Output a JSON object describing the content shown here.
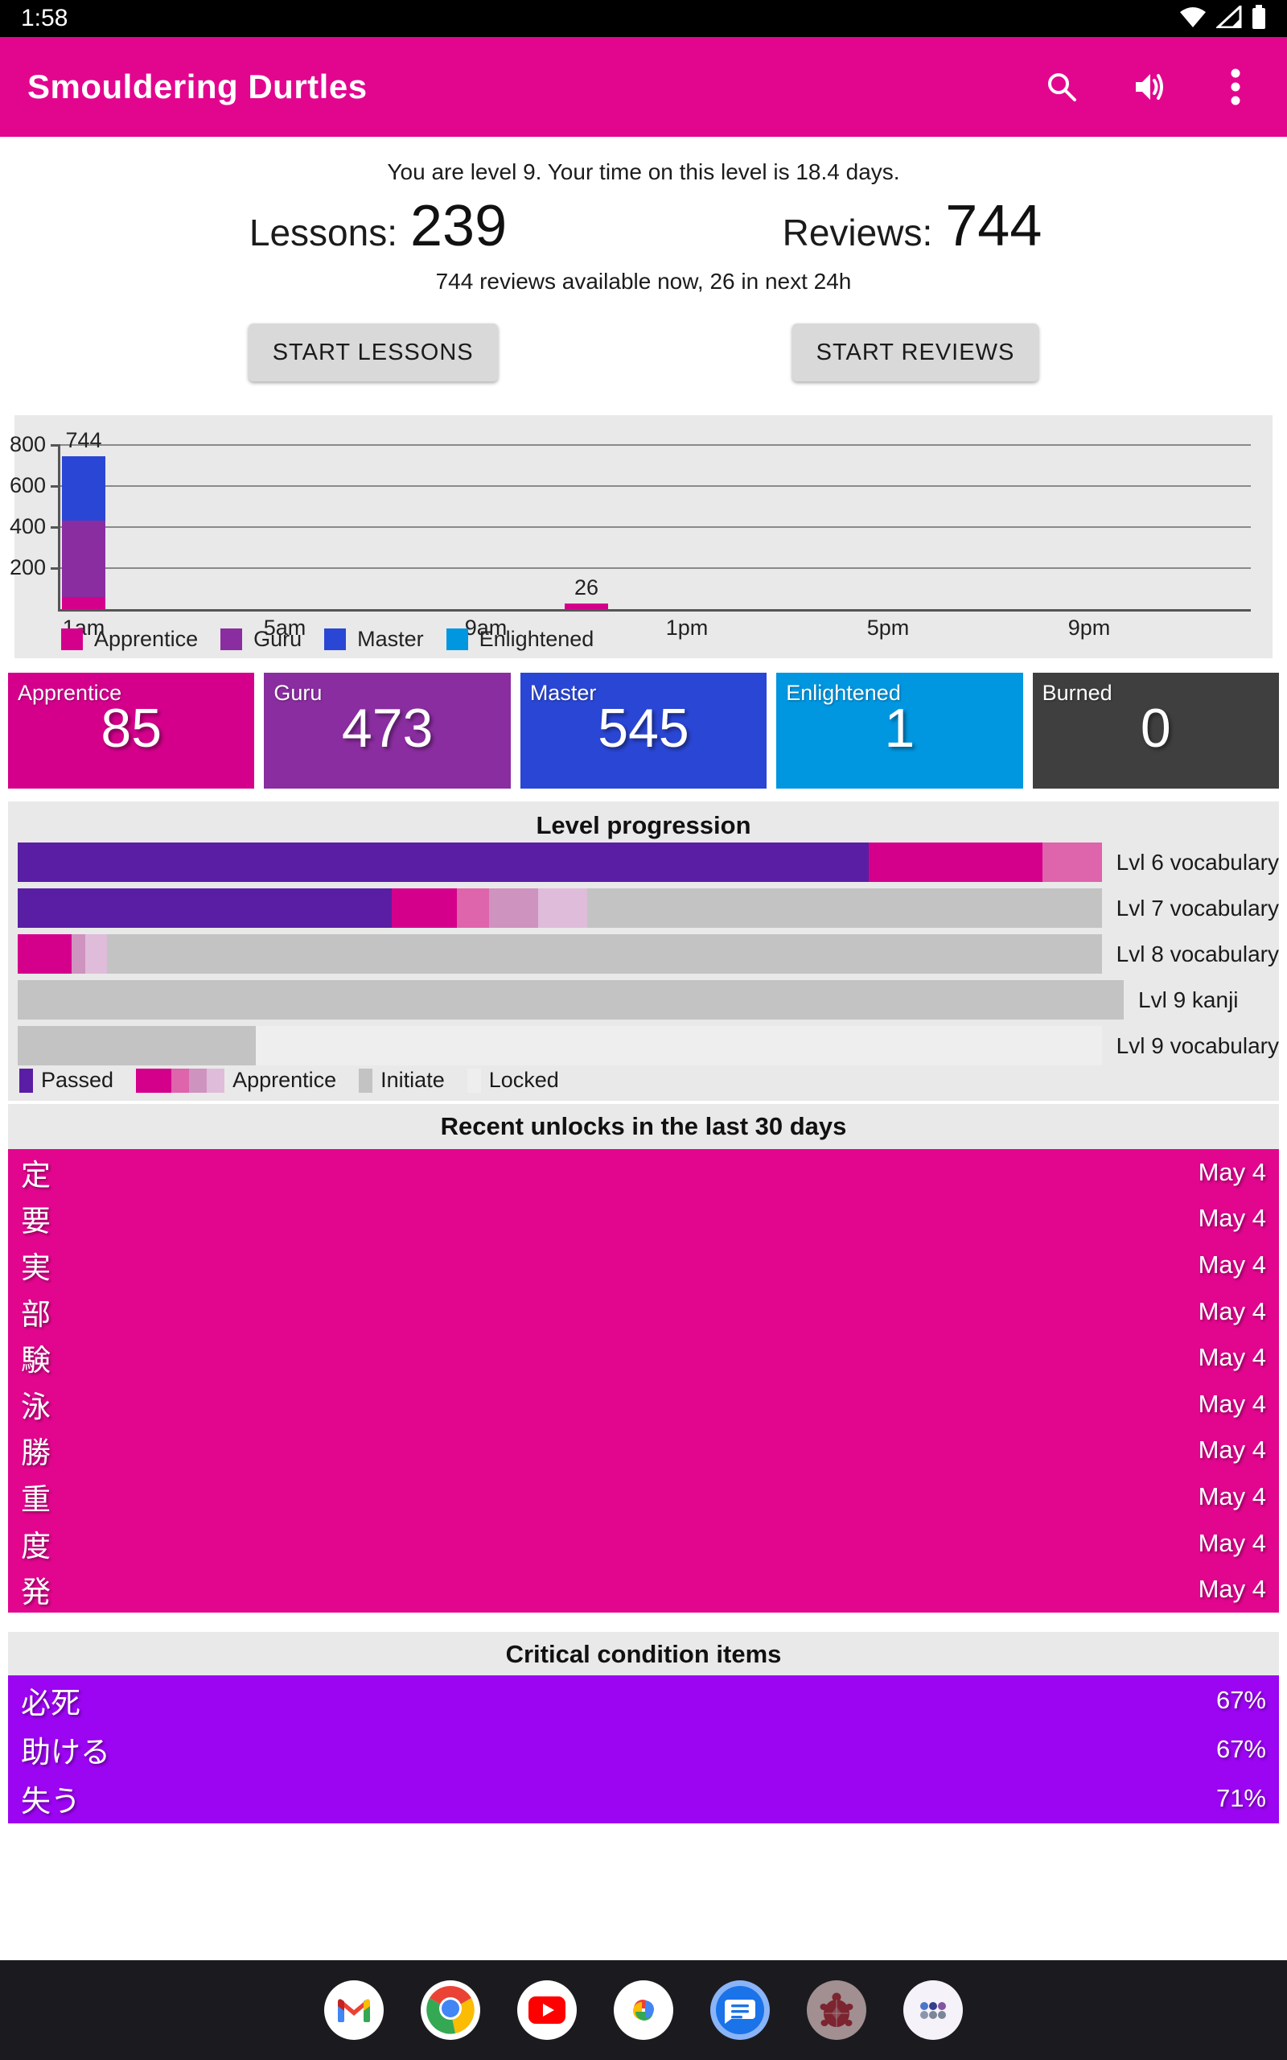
{
  "colors": {
    "appbar_pink": "#E2068F",
    "apprentice": "#D4008C",
    "guru": "#8A2DA0",
    "master": "#2A46D4",
    "enlightened": "#0096E0",
    "burned": "#3F3F3F",
    "passed": "#5A1EA5",
    "apprentice1": "#D4008C",
    "apprentice2": "#DE64AC",
    "apprentice3": "#CF93C0",
    "apprentice4": "#DFBCDA",
    "initiate": "#C3C3C3",
    "locked": "#EEEEEE",
    "critical_purple": "#9B05F2"
  },
  "status_bar": {
    "time": "1:58",
    "icons": [
      "wifi-icon",
      "cell-signal-icon",
      "battery-icon"
    ]
  },
  "app_bar": {
    "title": "Smouldering Durtles",
    "icons": [
      "search-icon",
      "volume-icon",
      "overflow-menu-icon"
    ]
  },
  "summary": {
    "level_text": "You are level 9. Your time on this level is 18.4 days.",
    "lessons_label": "Lessons:",
    "lessons_value": "239",
    "reviews_label": "Reviews:",
    "reviews_value": "744",
    "availability": "744 reviews available now, 26 in next 24h",
    "start_lessons": "START LESSONS",
    "start_reviews": "START REVIEWS"
  },
  "chart_data": {
    "type": "bar",
    "stacked": true,
    "ylim": [
      0,
      800
    ],
    "y_ticks": [
      200,
      400,
      600,
      800
    ],
    "x_ticks": [
      {
        "hour": 1,
        "label": "1am"
      },
      {
        "hour": 5,
        "label": "5am"
      },
      {
        "hour": 9,
        "label": "9am"
      },
      {
        "hour": 13,
        "label": "1pm"
      },
      {
        "hour": 17,
        "label": "5pm"
      },
      {
        "hour": 21,
        "label": "9pm"
      }
    ],
    "bars": [
      {
        "hour": 1,
        "label": "744",
        "segments": [
          {
            "stage": "apprentice",
            "value": 60
          },
          {
            "stage": "guru",
            "value": 373
          },
          {
            "stage": "master",
            "value": 311
          }
        ]
      },
      {
        "hour": 11,
        "label": "26",
        "segments": [
          {
            "stage": "apprentice",
            "value": 26
          }
        ]
      }
    ],
    "legend": [
      {
        "label": "Apprentice",
        "stage": "apprentice"
      },
      {
        "label": "Guru",
        "stage": "guru"
      },
      {
        "label": "Master",
        "stage": "master"
      },
      {
        "label": "Enlightened",
        "stage": "enlightened"
      }
    ]
  },
  "stage_cards": [
    {
      "label": "Apprentice",
      "value": "85",
      "stage": "apprentice"
    },
    {
      "label": "Guru",
      "value": "473",
      "stage": "guru"
    },
    {
      "label": "Master",
      "value": "545",
      "stage": "master"
    },
    {
      "label": "Enlightened",
      "value": "1",
      "stage": "enlightened"
    },
    {
      "label": "Burned",
      "value": "0",
      "stage": "burned"
    }
  ],
  "level_progression": {
    "title": "Level progression",
    "rows": [
      {
        "label": "Lvl 6 vocabulary",
        "segments": [
          [
            "passed",
            78.5
          ],
          [
            "apprentice1",
            16
          ],
          [
            "apprentice2",
            5.5
          ]
        ]
      },
      {
        "label": "Lvl 7 vocabulary",
        "segments": [
          [
            "passed",
            34.5
          ],
          [
            "apprentice1",
            6
          ],
          [
            "apprentice2",
            3
          ],
          [
            "apprentice3",
            4.5
          ],
          [
            "apprentice4",
            4.5
          ],
          [
            "initiate",
            47.5
          ]
        ]
      },
      {
        "label": "Lvl 8 vocabulary",
        "segments": [
          [
            "apprentice1",
            5
          ],
          [
            "apprentice3",
            1.2
          ],
          [
            "apprentice4",
            2
          ],
          [
            "initiate",
            91.8
          ]
        ]
      },
      {
        "label": "Lvl 9 kanji",
        "segments": [
          [
            "initiate",
            100
          ]
        ]
      },
      {
        "label": "Lvl 9 vocabulary",
        "segments": [
          [
            "initiate",
            22
          ],
          [
            "locked",
            78
          ]
        ]
      }
    ],
    "legend": [
      {
        "label": "Passed",
        "swatch": [
          "passed"
        ]
      },
      {
        "label": "Apprentice",
        "swatch": [
          "apprentice1",
          "apprentice1",
          "apprentice2",
          "apprentice3",
          "apprentice4"
        ]
      },
      {
        "label": "Initiate",
        "swatch": [
          "initiate"
        ]
      },
      {
        "label": "Locked",
        "swatch": [
          "locked"
        ]
      }
    ]
  },
  "recent_unlocks": {
    "title": "Recent unlocks in the last 30 days",
    "items": [
      {
        "char": "定",
        "date": "May 4"
      },
      {
        "char": "要",
        "date": "May 4"
      },
      {
        "char": "実",
        "date": "May 4"
      },
      {
        "char": "部",
        "date": "May 4"
      },
      {
        "char": "験",
        "date": "May 4"
      },
      {
        "char": "泳",
        "date": "May 4"
      },
      {
        "char": "勝",
        "date": "May 4"
      },
      {
        "char": "重",
        "date": "May 4"
      },
      {
        "char": "度",
        "date": "May 4"
      },
      {
        "char": "発",
        "date": "May 4"
      }
    ]
  },
  "critical_items": {
    "title": "Critical condition items",
    "items": [
      {
        "char": "必死",
        "pct": "67%"
      },
      {
        "char": "助ける",
        "pct": "67%"
      },
      {
        "char": "失う",
        "pct": "71%"
      }
    ]
  },
  "dock": {
    "icons": [
      "gmail-icon",
      "chrome-icon",
      "youtube-icon",
      "photos-icon",
      "messages-icon",
      "durtles-app-icon",
      "app-drawer-icon"
    ]
  }
}
